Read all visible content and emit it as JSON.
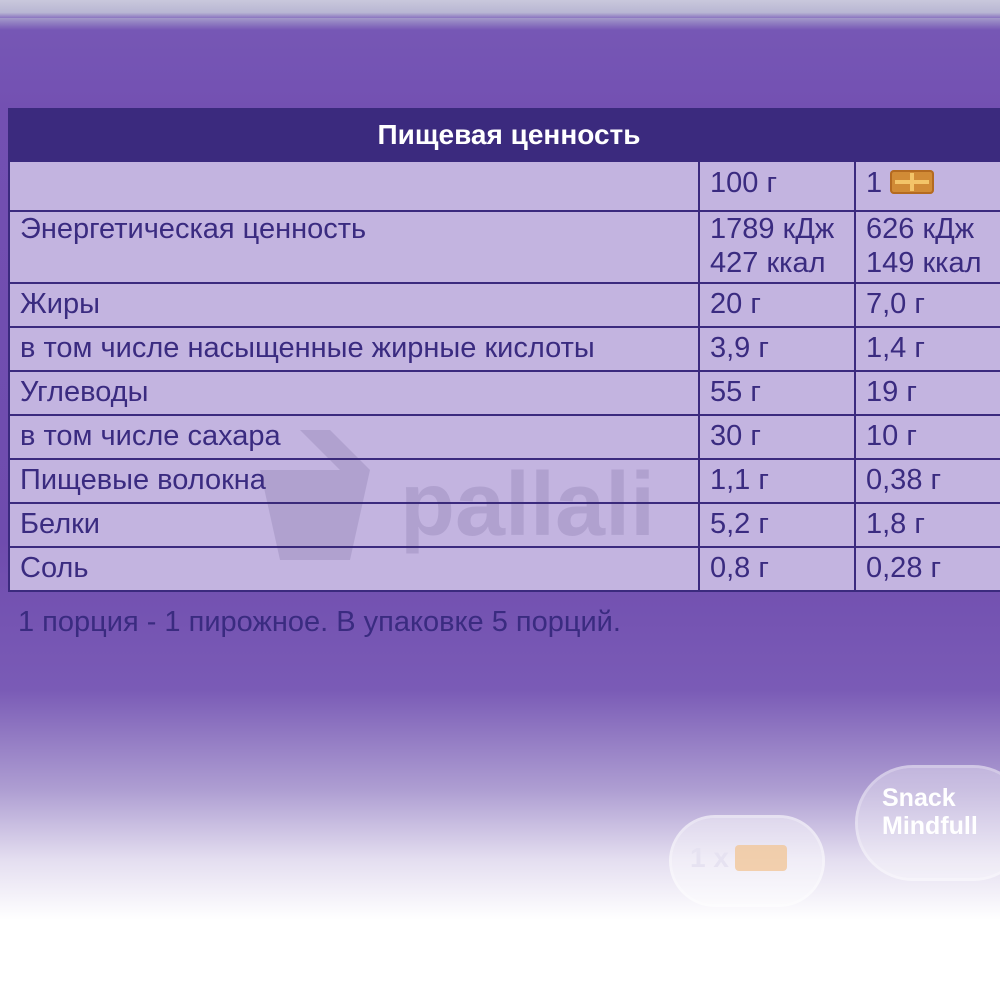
{
  "table": {
    "title": "Пищевая ценность",
    "col_100g": "100 г",
    "col_portion_prefix": "1",
    "col_portion_icon": "cookie-icon",
    "rows": [
      {
        "label": "Энергетическая ценность",
        "per100_kj": "1789 кДж",
        "per100_kcal": "427 ккал",
        "portion_kj": "626 кДж",
        "portion_kcal": "149 ккал"
      },
      {
        "label": "Жиры",
        "per100": "20 г",
        "portion": "7,0 г"
      },
      {
        "label": "в том числе насыщенные жирные кислоты",
        "per100": "3,9 г",
        "portion": "1,4 г"
      },
      {
        "label": "Углеводы",
        "per100": "55 г",
        "portion": "19 г"
      },
      {
        "label": "в том числе сахара",
        "per100": "30 г",
        "portion": "10 г"
      },
      {
        "label": "Пищевые волокна",
        "per100": "1,1 г",
        "portion": "0,38 г"
      },
      {
        "label": "Белки",
        "per100": "5,2 г",
        "portion": "1,8 г"
      },
      {
        "label": "Соль",
        "per100": "0,8 г",
        "portion": "0,28 г"
      }
    ]
  },
  "footnote": "1 порция - 1 пирожное. В упаковке 5 порций.",
  "badges": {
    "snack_line1": "Snack",
    "snack_line2": "Mindfull",
    "serving_label": "1 x",
    "serving_icon": "cookie-icon"
  },
  "watermark": {
    "text": "pallali",
    "icon": "basket-icon"
  },
  "colors": {
    "background_purple": "#7350b2",
    "table_cell": "#c3b4e0",
    "table_border_header": "#3b2a7e",
    "text": "#3a2b80"
  }
}
